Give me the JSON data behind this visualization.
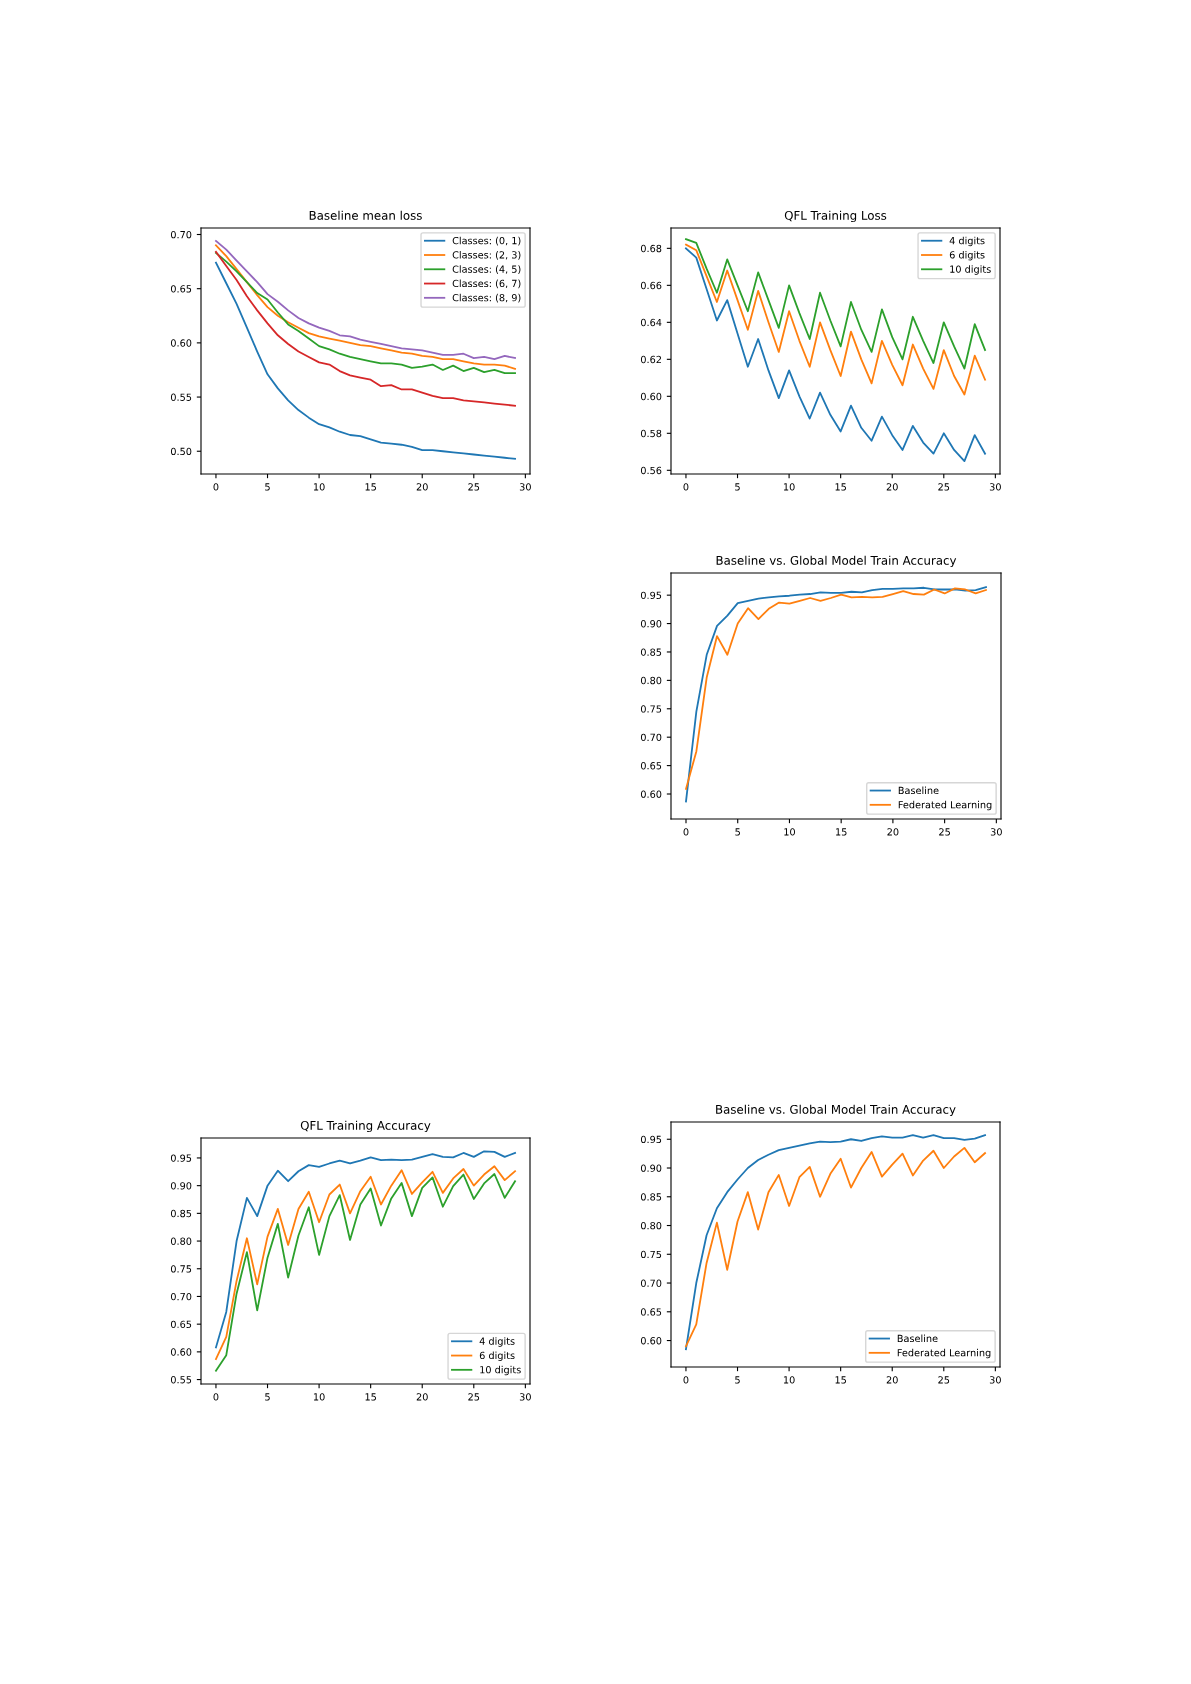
{
  "chart_data": [
    {
      "type": "line",
      "title": "Baseline mean loss",
      "x": [
        0,
        1,
        2,
        3,
        4,
        5,
        6,
        7,
        8,
        9,
        10,
        11,
        12,
        13,
        14,
        15,
        16,
        17,
        18,
        19,
        20,
        21,
        22,
        23,
        24,
        25,
        26,
        27,
        28,
        29
      ],
      "xlim": [
        -1.45,
        30.45
      ],
      "xticks": [
        0,
        5,
        10,
        15,
        20,
        25,
        30
      ],
      "ylim": [
        0.479,
        0.706
      ],
      "yticks": [
        {
          "value": 0.5,
          "label": "0.50"
        },
        {
          "value": 0.55,
          "label": "0.55"
        },
        {
          "value": 0.6,
          "label": "0.60"
        },
        {
          "value": 0.65,
          "label": "0.65"
        },
        {
          "value": 0.7,
          "label": "0.70"
        }
      ],
      "grid": false,
      "legend": "top right",
      "series": [
        {
          "name": "Classes: (0, 1)",
          "color": "#1f77b4",
          "values": [
            0.674,
            0.655,
            0.636,
            0.614,
            0.592,
            0.571,
            0.558,
            0.547,
            0.538,
            0.531,
            0.525,
            0.522,
            0.518,
            0.515,
            0.514,
            0.511,
            0.508,
            0.507,
            0.506,
            0.504,
            0.501,
            0.501,
            0.5,
            0.499,
            0.498,
            0.497,
            0.496,
            0.495,
            0.494,
            0.493
          ]
        },
        {
          "name": "Classes: (2, 3)",
          "color": "#ff7f0e",
          "values": [
            0.69,
            0.68,
            0.668,
            0.656,
            0.644,
            0.633,
            0.625,
            0.619,
            0.614,
            0.609,
            0.606,
            0.604,
            0.602,
            0.6,
            0.598,
            0.597,
            0.595,
            0.593,
            0.591,
            0.59,
            0.588,
            0.587,
            0.585,
            0.585,
            0.583,
            0.581,
            0.58,
            0.58,
            0.579,
            0.576
          ]
        },
        {
          "name": "Classes: (4, 5)",
          "color": "#2ca02c",
          "values": [
            0.683,
            0.675,
            0.666,
            0.656,
            0.646,
            0.64,
            0.628,
            0.617,
            0.611,
            0.604,
            0.597,
            0.594,
            0.59,
            0.587,
            0.585,
            0.583,
            0.581,
            0.581,
            0.58,
            0.577,
            0.578,
            0.58,
            0.575,
            0.579,
            0.574,
            0.577,
            0.573,
            0.575,
            0.572,
            0.572
          ]
        },
        {
          "name": "Classes: (6, 7)",
          "color": "#d62728",
          "values": [
            0.684,
            0.671,
            0.658,
            0.643,
            0.63,
            0.618,
            0.607,
            0.599,
            0.592,
            0.587,
            0.582,
            0.58,
            0.574,
            0.57,
            0.568,
            0.566,
            0.56,
            0.561,
            0.557,
            0.557,
            0.554,
            0.551,
            0.549,
            0.549,
            0.547,
            0.546,
            0.545,
            0.544,
            0.543,
            0.542
          ]
        },
        {
          "name": "Classes: (8, 9)",
          "color": "#9467bd",
          "values": [
            0.694,
            0.686,
            0.676,
            0.666,
            0.656,
            0.645,
            0.638,
            0.63,
            0.623,
            0.618,
            0.614,
            0.611,
            0.607,
            0.606,
            0.603,
            0.601,
            0.599,
            0.597,
            0.595,
            0.594,
            0.593,
            0.591,
            0.589,
            0.589,
            0.59,
            0.586,
            0.587,
            0.585,
            0.588,
            0.586
          ]
        }
      ]
    },
    {
      "type": "line",
      "title": "QFL Training Loss",
      "x": [
        0,
        1,
        2,
        3,
        4,
        5,
        6,
        7,
        8,
        9,
        10,
        11,
        12,
        13,
        14,
        15,
        16,
        17,
        18,
        19,
        20,
        21,
        22,
        23,
        24,
        25,
        26,
        27,
        28,
        29
      ],
      "xlim": [
        -1.45,
        30.45
      ],
      "xticks": [
        0,
        5,
        10,
        15,
        20,
        25,
        30
      ],
      "ylim": [
        0.558,
        0.691
      ],
      "yticks": [
        {
          "value": 0.56,
          "label": "0.56"
        },
        {
          "value": 0.58,
          "label": "0.58"
        },
        {
          "value": 0.6,
          "label": "0.60"
        },
        {
          "value": 0.62,
          "label": "0.62"
        },
        {
          "value": 0.64,
          "label": "0.64"
        },
        {
          "value": 0.66,
          "label": "0.66"
        },
        {
          "value": 0.68,
          "label": "0.68"
        }
      ],
      "grid": false,
      "legend": "top right",
      "series": [
        {
          "name": "4 digits",
          "color": "#1f77b4",
          "values": [
            0.68,
            0.675,
            0.658,
            0.641,
            0.652,
            0.634,
            0.616,
            0.631,
            0.614,
            0.599,
            0.614,
            0.6,
            0.588,
            0.602,
            0.59,
            0.581,
            0.595,
            0.583,
            0.576,
            0.589,
            0.579,
            0.571,
            0.584,
            0.575,
            0.569,
            0.58,
            0.571,
            0.565,
            0.579,
            0.569
          ]
        },
        {
          "name": "6 digits",
          "color": "#ff7f0e",
          "values": [
            0.682,
            0.679,
            0.665,
            0.651,
            0.668,
            0.652,
            0.636,
            0.657,
            0.64,
            0.624,
            0.646,
            0.63,
            0.616,
            0.64,
            0.625,
            0.611,
            0.635,
            0.62,
            0.607,
            0.63,
            0.617,
            0.606,
            0.628,
            0.615,
            0.604,
            0.625,
            0.611,
            0.601,
            0.622,
            0.609
          ]
        },
        {
          "name": "10 digits",
          "color": "#2ca02c",
          "values": [
            0.685,
            0.683,
            0.669,
            0.656,
            0.674,
            0.66,
            0.646,
            0.667,
            0.652,
            0.637,
            0.66,
            0.645,
            0.631,
            0.656,
            0.641,
            0.627,
            0.651,
            0.636,
            0.624,
            0.647,
            0.632,
            0.62,
            0.643,
            0.63,
            0.618,
            0.64,
            0.627,
            0.615,
            0.639,
            0.625
          ]
        }
      ]
    },
    {
      "type": "line",
      "title": "Baseline vs. Global Model Train Accuracy",
      "x": [
        0,
        1,
        2,
        3,
        4,
        5,
        6,
        7,
        8,
        9,
        10,
        11,
        12,
        13,
        14,
        15,
        16,
        17,
        18,
        19,
        20,
        21,
        22,
        23,
        24,
        25,
        26,
        27,
        28,
        29
      ],
      "xlim": [
        -1.45,
        30.45
      ],
      "xticks": [
        0,
        5,
        10,
        15,
        20,
        25,
        30
      ],
      "ylim": [
        0.556,
        0.989
      ],
      "yticks": [
        {
          "value": 0.6,
          "label": "0.60"
        },
        {
          "value": 0.65,
          "label": "0.65"
        },
        {
          "value": 0.7,
          "label": "0.70"
        },
        {
          "value": 0.75,
          "label": "0.75"
        },
        {
          "value": 0.8,
          "label": "0.80"
        },
        {
          "value": 0.85,
          "label": "0.85"
        },
        {
          "value": 0.9,
          "label": "0.90"
        },
        {
          "value": 0.95,
          "label": "0.95"
        }
      ],
      "grid": false,
      "legend": "bottom right",
      "series": [
        {
          "name": "Baseline",
          "color": "#1f77b4",
          "values": [
            0.587,
            0.745,
            0.845,
            0.896,
            0.914,
            0.936,
            0.94,
            0.944,
            0.946,
            0.948,
            0.949,
            0.951,
            0.952,
            0.955,
            0.954,
            0.954,
            0.956,
            0.955,
            0.959,
            0.961,
            0.961,
            0.962,
            0.962,
            0.963,
            0.96,
            0.96,
            0.96,
            0.958,
            0.959,
            0.964
          ]
        },
        {
          "name": "Federated Learning",
          "color": "#ff7f0e",
          "values": [
            0.609,
            0.675,
            0.805,
            0.878,
            0.845,
            0.9,
            0.927,
            0.908,
            0.926,
            0.937,
            0.935,
            0.94,
            0.945,
            0.94,
            0.945,
            0.951,
            0.946,
            0.947,
            0.946,
            0.947,
            0.952,
            0.957,
            0.952,
            0.951,
            0.96,
            0.953,
            0.962,
            0.96,
            0.953,
            0.959
          ]
        }
      ]
    },
    {
      "type": "line",
      "title": "QFL Training Accuracy",
      "x": [
        0,
        1,
        2,
        3,
        4,
        5,
        6,
        7,
        8,
        9,
        10,
        11,
        12,
        13,
        14,
        15,
        16,
        17,
        18,
        19,
        20,
        21,
        22,
        23,
        24,
        25,
        26,
        27,
        28,
        29
      ],
      "xlim": [
        -1.45,
        30.45
      ],
      "xticks": [
        0,
        5,
        10,
        15,
        20,
        25,
        30
      ],
      "ylim": [
        0.542,
        0.986
      ],
      "yticks": [
        {
          "value": 0.55,
          "label": "0.55"
        },
        {
          "value": 0.6,
          "label": "0.60"
        },
        {
          "value": 0.65,
          "label": "0.65"
        },
        {
          "value": 0.7,
          "label": "0.70"
        },
        {
          "value": 0.75,
          "label": "0.75"
        },
        {
          "value": 0.8,
          "label": "0.80"
        },
        {
          "value": 0.85,
          "label": "0.85"
        },
        {
          "value": 0.9,
          "label": "0.90"
        },
        {
          "value": 0.95,
          "label": "0.95"
        }
      ],
      "grid": false,
      "legend": "bottom right",
      "series": [
        {
          "name": "4 digits",
          "color": "#1f77b4",
          "values": [
            0.608,
            0.672,
            0.8,
            0.878,
            0.845,
            0.9,
            0.927,
            0.908,
            0.926,
            0.937,
            0.934,
            0.94,
            0.945,
            0.94,
            0.945,
            0.951,
            0.946,
            0.947,
            0.946,
            0.947,
            0.952,
            0.957,
            0.952,
            0.951,
            0.959,
            0.952,
            0.962,
            0.961,
            0.952,
            0.959
          ]
        },
        {
          "name": "6 digits",
          "color": "#ff7f0e",
          "values": [
            0.587,
            0.627,
            0.728,
            0.805,
            0.722,
            0.808,
            0.858,
            0.793,
            0.858,
            0.889,
            0.834,
            0.884,
            0.902,
            0.85,
            0.89,
            0.916,
            0.866,
            0.9,
            0.928,
            0.885,
            0.906,
            0.925,
            0.887,
            0.913,
            0.93,
            0.9,
            0.92,
            0.935,
            0.91,
            0.926
          ]
        },
        {
          "name": "10 digits",
          "color": "#2ca02c",
          "values": [
            0.566,
            0.594,
            0.705,
            0.78,
            0.675,
            0.77,
            0.831,
            0.734,
            0.81,
            0.861,
            0.775,
            0.845,
            0.883,
            0.802,
            0.866,
            0.895,
            0.828,
            0.877,
            0.905,
            0.845,
            0.896,
            0.915,
            0.862,
            0.899,
            0.92,
            0.876,
            0.904,
            0.921,
            0.878,
            0.908
          ]
        }
      ]
    },
    {
      "type": "line",
      "title": "Baseline vs. Global Model Train Accuracy",
      "x": [
        0,
        1,
        2,
        3,
        4,
        5,
        6,
        7,
        8,
        9,
        10,
        11,
        12,
        13,
        14,
        15,
        16,
        17,
        18,
        19,
        20,
        21,
        22,
        23,
        24,
        25,
        26,
        27,
        28,
        29
      ],
      "xlim": [
        -1.45,
        30.45
      ],
      "xticks": [
        0,
        5,
        10,
        15,
        20,
        25,
        30
      ],
      "ylim": [
        0.554,
        0.98
      ],
      "yticks": [
        {
          "value": 0.6,
          "label": "0.60"
        },
        {
          "value": 0.65,
          "label": "0.65"
        },
        {
          "value": 0.7,
          "label": "0.70"
        },
        {
          "value": 0.75,
          "label": "0.75"
        },
        {
          "value": 0.8,
          "label": "0.80"
        },
        {
          "value": 0.85,
          "label": "0.85"
        },
        {
          "value": 0.9,
          "label": "0.90"
        },
        {
          "value": 0.95,
          "label": "0.95"
        }
      ],
      "grid": false,
      "legend": "bottom right",
      "series": [
        {
          "name": "Baseline",
          "color": "#1f77b4",
          "values": [
            0.585,
            0.7,
            0.783,
            0.83,
            0.858,
            0.88,
            0.9,
            0.914,
            0.923,
            0.931,
            0.935,
            0.939,
            0.943,
            0.946,
            0.945,
            0.946,
            0.95,
            0.947,
            0.952,
            0.955,
            0.953,
            0.953,
            0.957,
            0.953,
            0.957,
            0.952,
            0.952,
            0.949,
            0.951,
            0.957
          ]
        },
        {
          "name": "Federated Learning",
          "color": "#ff7f0e",
          "values": [
            0.59,
            0.628,
            0.735,
            0.805,
            0.723,
            0.807,
            0.858,
            0.793,
            0.858,
            0.888,
            0.834,
            0.884,
            0.902,
            0.85,
            0.89,
            0.916,
            0.866,
            0.9,
            0.928,
            0.885,
            0.906,
            0.925,
            0.887,
            0.913,
            0.93,
            0.9,
            0.92,
            0.935,
            0.91,
            0.926
          ]
        }
      ]
    }
  ]
}
